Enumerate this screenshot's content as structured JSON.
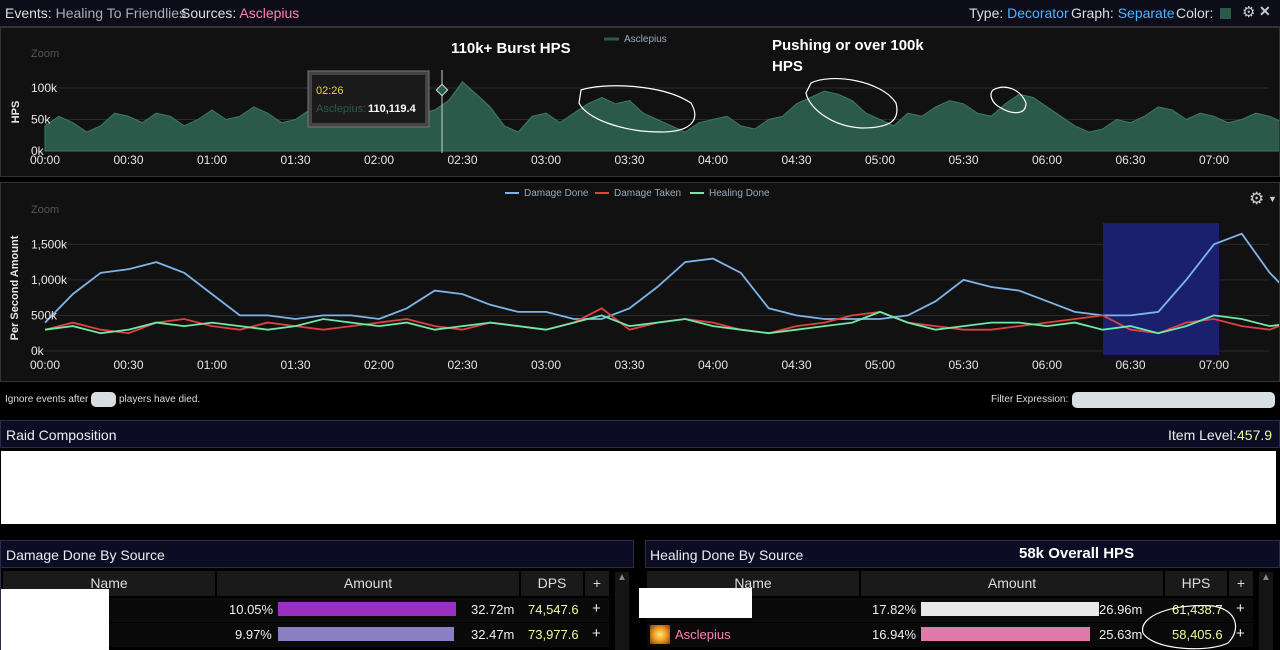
{
  "topbar": {
    "events_label": "Events:",
    "events_value": "Healing To Friendlies",
    "sources_label": "Sources:",
    "sources_value": "Asclepius",
    "type_label": "Type:",
    "type_value": "Decorator",
    "graph_label": "Graph:",
    "graph_value": "Separate",
    "color_label": "Color:",
    "color_swatch": "#2a5a48"
  },
  "hps_chart": {
    "zoom_label": "Zoom",
    "ylabel": "HPS",
    "legend": "Asclepius",
    "tooltip_time": "02:26",
    "tooltip_source": "Asclepius:",
    "tooltip_value": "110,119.4",
    "annotation_burst": "110k+ Burst HPS",
    "annotation_push_line1": "Pushing or over 100k",
    "annotation_push_line2": "HPS",
    "yticks": [
      "100k",
      "50k",
      "0k"
    ],
    "xticks": [
      "00:00",
      "00:30",
      "01:00",
      "01:30",
      "02:00",
      "02:30",
      "03:00",
      "03:30",
      "04:00",
      "04:30",
      "05:00",
      "05:30",
      "06:00",
      "06:30",
      "07:00"
    ]
  },
  "chart_data": [
    {
      "type": "area",
      "ylabel": "HPS",
      "ylim": [
        0,
        120000
      ],
      "series": [
        {
          "name": "Asclepius",
          "color": "#2b5a4a",
          "x_minutes": [
            0,
            0.5,
            1,
            1.5,
            2,
            2.5,
            3,
            3.5,
            4,
            4.5,
            5,
            5.5,
            6,
            6.5,
            7,
            7.5,
            8,
            8.5,
            9,
            9.5,
            10,
            10.5,
            11,
            11.5,
            12,
            12.5,
            13,
            13.5,
            14,
            14.5,
            15,
            15.5,
            16,
            16.5,
            17,
            17.5,
            18,
            18.5,
            19,
            19.5,
            20,
            20.5,
            21,
            21.5,
            22,
            22.5,
            23,
            23.5,
            24,
            24.5,
            25,
            25.5,
            26,
            26.5,
            27,
            27.5,
            28,
            28.5,
            29,
            29.5,
            30,
            30.5,
            31,
            31.5,
            32,
            32.5,
            33,
            33.5,
            34,
            34.5,
            35,
            35.5,
            36,
            36.5,
            37,
            37.5,
            38,
            38.5,
            39,
            39.5,
            40,
            40.5,
            41,
            41.5,
            42,
            42.5,
            43,
            43.5,
            44,
            44.5,
            45,
            45.5
          ],
          "values": [
            40000,
            55000,
            45000,
            30000,
            40000,
            60000,
            55000,
            45000,
            60000,
            55000,
            40000,
            50000,
            65000,
            50000,
            55000,
            70000,
            60000,
            45000,
            50000,
            65000,
            55000,
            60000,
            75000,
            60000,
            70000,
            80000,
            75000,
            60000,
            65000,
            80000,
            110000,
            90000,
            70000,
            40000,
            30000,
            55000,
            60000,
            45000,
            60000,
            75000,
            85000,
            75000,
            80000,
            60000,
            50000,
            40000,
            30000,
            45000,
            50000,
            55000,
            40000,
            35000,
            50000,
            55000,
            75000,
            85000,
            95000,
            90000,
            80000,
            60000,
            50000,
            40000,
            60000,
            55000,
            70000,
            80000,
            75000,
            60000,
            55000,
            75000,
            90000,
            85000,
            70000,
            55000,
            40000,
            30000,
            35000,
            50000,
            45000,
            55000,
            70000,
            65000,
            50000,
            60000,
            55000,
            45000,
            50000,
            60000,
            55000,
            45000,
            40000,
            30000
          ]
        }
      ]
    },
    {
      "type": "line",
      "ylabel": "Per Second Amount",
      "ylim": [
        0,
        1800000
      ],
      "series": [
        {
          "name": "Damage Done",
          "color": "#7fb4e8",
          "x_minutes": [
            0,
            1,
            2,
            3,
            4,
            5,
            6,
            7,
            8,
            9,
            10,
            11,
            12,
            13,
            14,
            15,
            16,
            17,
            18,
            19,
            20,
            21,
            22,
            23,
            24,
            25,
            26,
            27,
            28,
            29,
            30,
            31,
            32,
            33,
            34,
            35,
            36,
            37,
            38,
            39,
            40,
            41,
            42,
            43,
            44,
            45,
            45.5
          ],
          "values": [
            400000,
            800000,
            1100000,
            1150000,
            1250000,
            1100000,
            800000,
            500000,
            500000,
            450000,
            500000,
            500000,
            450000,
            600000,
            850000,
            800000,
            650000,
            550000,
            550000,
            450000,
            450000,
            600000,
            900000,
            1250000,
            1300000,
            1100000,
            600000,
            500000,
            450000,
            450000,
            450000,
            500000,
            700000,
            1000000,
            900000,
            850000,
            700000,
            550000,
            500000,
            500000,
            550000,
            1000000,
            1500000,
            1650000,
            1100000,
            700000,
            350000
          ]
        },
        {
          "name": "Damage Taken",
          "color": "#e04040",
          "x_minutes": [
            0,
            1,
            2,
            3,
            4,
            5,
            6,
            7,
            8,
            9,
            10,
            11,
            12,
            13,
            14,
            15,
            16,
            17,
            18,
            19,
            20,
            21,
            22,
            23,
            24,
            25,
            26,
            27,
            28,
            29,
            30,
            31,
            32,
            33,
            34,
            35,
            36,
            37,
            38,
            39,
            40,
            41,
            42,
            43,
            44,
            45,
            45.5
          ],
          "values": [
            300000,
            400000,
            300000,
            250000,
            400000,
            450000,
            350000,
            300000,
            400000,
            350000,
            300000,
            350000,
            400000,
            450000,
            350000,
            300000,
            400000,
            350000,
            300000,
            400000,
            600000,
            300000,
            400000,
            450000,
            400000,
            300000,
            250000,
            350000,
            400000,
            500000,
            550000,
            400000,
            350000,
            300000,
            300000,
            350000,
            400000,
            450000,
            500000,
            300000,
            250000,
            400000,
            450000,
            350000,
            300000,
            450000,
            350000
          ]
        },
        {
          "name": "Healing Done",
          "color": "#6fe8a8",
          "x_minutes": [
            0,
            1,
            2,
            3,
            4,
            5,
            6,
            7,
            8,
            9,
            10,
            11,
            12,
            13,
            14,
            15,
            16,
            17,
            18,
            19,
            20,
            21,
            22,
            23,
            24,
            25,
            26,
            27,
            28,
            29,
            30,
            31,
            32,
            33,
            34,
            35,
            36,
            37,
            38,
            39,
            40,
            41,
            42,
            43,
            44,
            45,
            45.5
          ],
          "values": [
            300000,
            350000,
            250000,
            300000,
            400000,
            350000,
            400000,
            350000,
            300000,
            350000,
            450000,
            400000,
            350000,
            400000,
            300000,
            350000,
            400000,
            350000,
            300000,
            400000,
            500000,
            350000,
            400000,
            450000,
            350000,
            300000,
            250000,
            300000,
            350000,
            400000,
            550000,
            400000,
            300000,
            350000,
            400000,
            400000,
            350000,
            400000,
            300000,
            350000,
            250000,
            350000,
            500000,
            450000,
            350000,
            400000,
            200000
          ]
        }
      ]
    }
  ],
  "main_chart": {
    "zoom_label": "Zoom",
    "ylabel": "Per Second Amount",
    "yticks": [
      "1,500k",
      "1,000k",
      "500k",
      "0k"
    ],
    "xticks": [
      "00:00",
      "00:30",
      "01:00",
      "01:30",
      "02:00",
      "02:30",
      "03:00",
      "03:30",
      "04:00",
      "04:30",
      "05:00",
      "05:30",
      "06:00",
      "06:30",
      "07:00"
    ]
  },
  "filters": {
    "ignore_prefix": "Ignore events after",
    "ignore_suffix": "players have died.",
    "filter_label": "Filter Expression:"
  },
  "raid": {
    "title": "Raid Composition",
    "item_level_label": "Item Level:",
    "item_level_value": "457.9"
  },
  "damage_table": {
    "title": "Damage Done By Source",
    "columns": [
      "Name",
      "Amount",
      "DPS",
      "+"
    ],
    "rows": [
      {
        "pct": "10.05%",
        "amount": "32.72m",
        "dps": "74,547.6",
        "plus": "+",
        "bar_color": "#9b2fc0",
        "bar_frac": 1.0
      },
      {
        "pct": "9.97%",
        "amount": "32.47m",
        "dps": "73,977.6",
        "plus": "+",
        "bar_color": "#8b7fc4",
        "bar_frac": 0.99
      }
    ]
  },
  "healing_table": {
    "title": "Healing Done By Source",
    "annotation": "58k Overall HPS",
    "columns": [
      "Name",
      "Amount",
      "HPS",
      "+"
    ],
    "rows": [
      {
        "name": "",
        "pct": "17.82%",
        "amount": "26.96m",
        "hps": "61,438.7",
        "plus": "+",
        "bar_color": "#e8e8e8",
        "bar_frac": 1.0
      },
      {
        "name": "Asclepius",
        "pct": "16.94%",
        "amount": "25.63m",
        "hps": "58,405.6",
        "plus": "+",
        "bar_color": "#e07aa8",
        "bar_frac": 0.95
      }
    ]
  }
}
